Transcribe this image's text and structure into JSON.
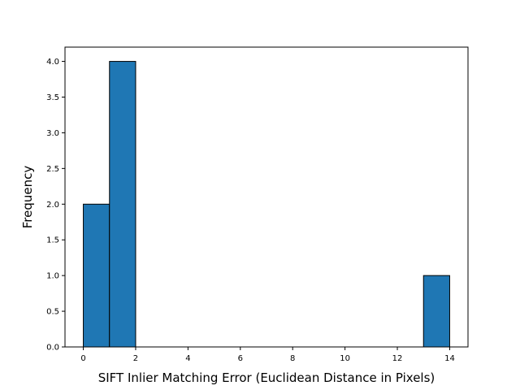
{
  "chart_data": {
    "type": "bar",
    "bins": [
      {
        "x0": 0,
        "x1": 1,
        "count": 2
      },
      {
        "x0": 1,
        "x1": 2,
        "count": 4
      },
      {
        "x0": 2,
        "x1": 3,
        "count": 0
      },
      {
        "x0": 3,
        "x1": 4,
        "count": 0
      },
      {
        "x0": 4,
        "x1": 5,
        "count": 0
      },
      {
        "x0": 5,
        "x1": 6,
        "count": 0
      },
      {
        "x0": 6,
        "x1": 7,
        "count": 0
      },
      {
        "x0": 7,
        "x1": 8,
        "count": 0
      },
      {
        "x0": 8,
        "x1": 9,
        "count": 0
      },
      {
        "x0": 9,
        "x1": 10,
        "count": 0
      },
      {
        "x0": 10,
        "x1": 11,
        "count": 0
      },
      {
        "x0": 11,
        "x1": 12,
        "count": 0
      },
      {
        "x0": 12,
        "x1": 13,
        "count": 0
      },
      {
        "x0": 13,
        "x1": 14,
        "count": 1
      }
    ],
    "title": "",
    "xlabel": "SIFT Inlier Matching Error (Euclidean Distance in Pixels)",
    "ylabel": "Frequency",
    "xlim": [
      -0.7,
      14.7
    ],
    "ylim": [
      0,
      4.2
    ],
    "xticks": [
      0,
      2,
      4,
      6,
      8,
      10,
      12,
      14
    ],
    "xtick_labels": [
      "0",
      "2",
      "4",
      "6",
      "8",
      "10",
      "12",
      "14"
    ],
    "yticks": [
      0,
      0.5,
      1,
      1.5,
      2,
      2.5,
      3,
      3.5,
      4
    ],
    "ytick_labels": [
      "0.0",
      "0.5",
      "1.0",
      "1.5",
      "2.0",
      "2.5",
      "3.0",
      "3.5",
      "4.0"
    ],
    "grid": false,
    "legend": "none",
    "bar_color": "#1f77b4",
    "edge_color": "#000000"
  }
}
